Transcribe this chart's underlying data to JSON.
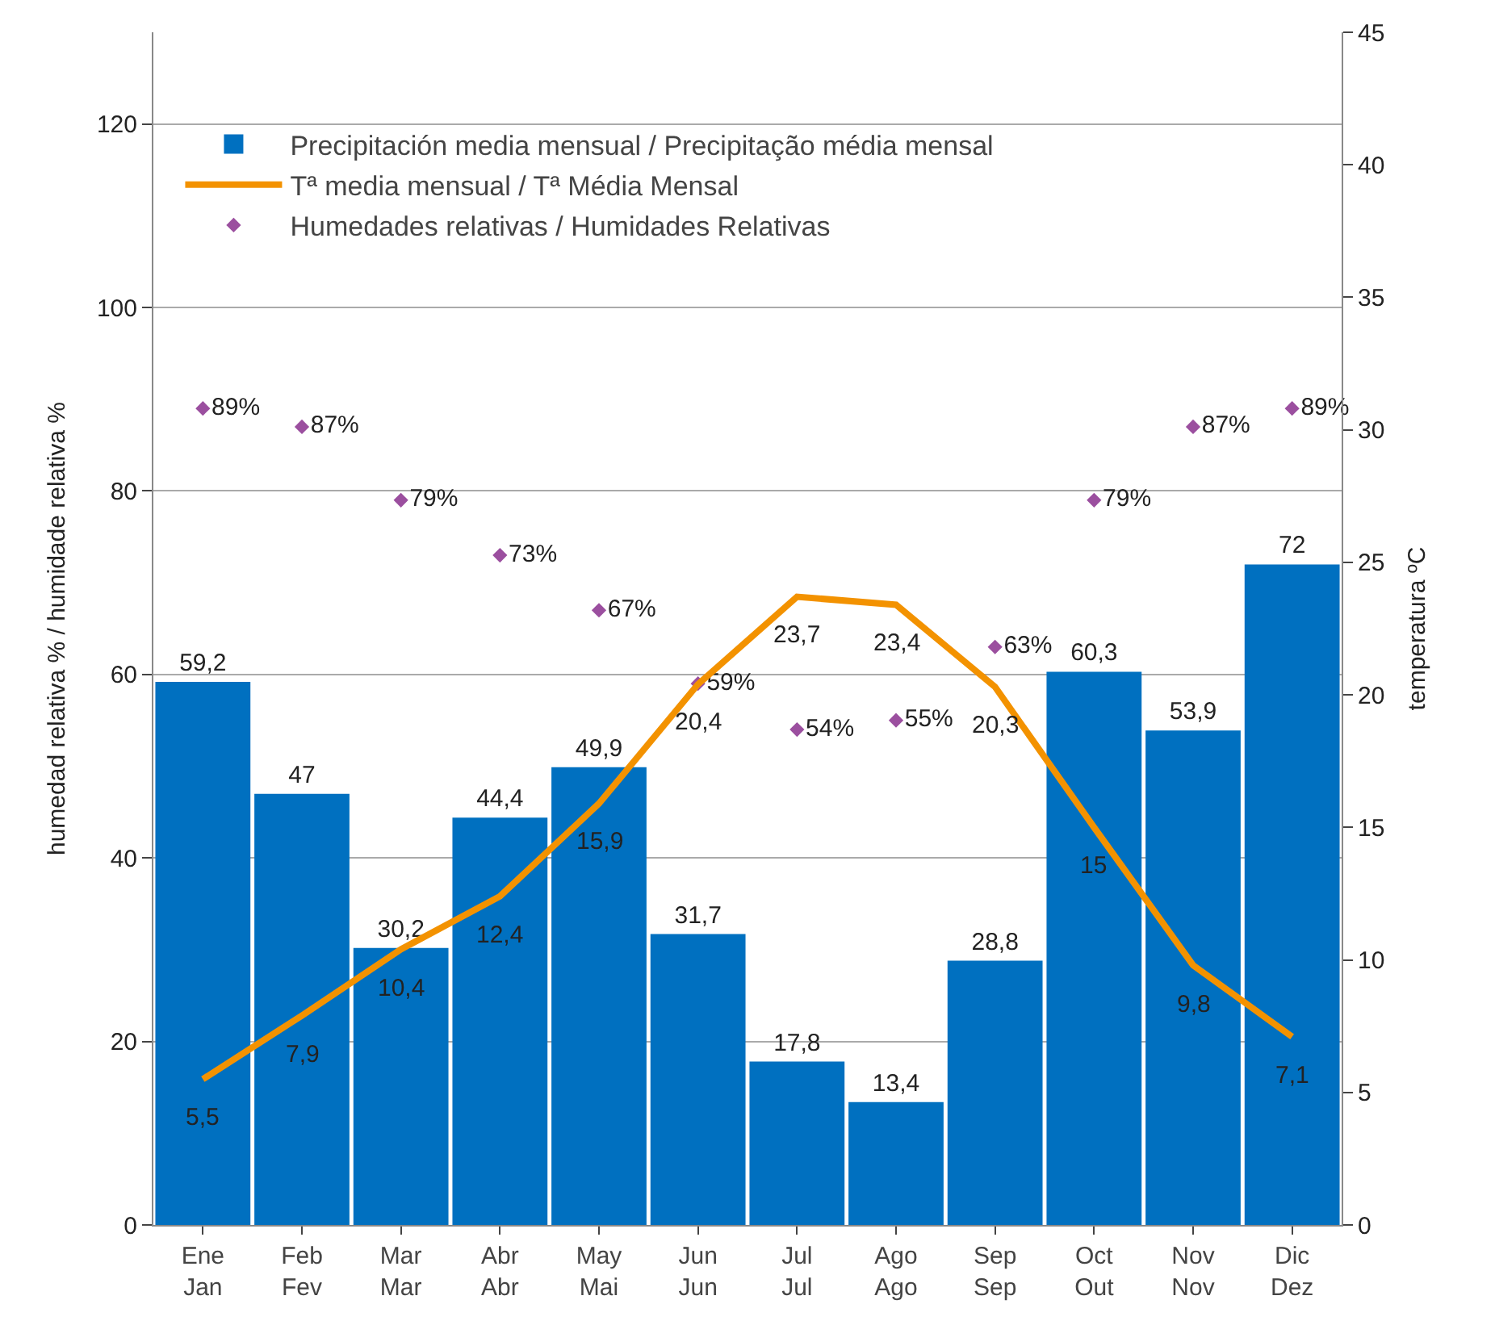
{
  "chart_data": {
    "type": "bar",
    "categories": [
      "Ene\nJan",
      "Feb\nFev",
      "Mar\nMar",
      "Abr\nAbr",
      "May\nMai",
      "Jun\nJun",
      "Jul\nJul",
      "Ago\nAgo",
      "Sep\nSep",
      "Oct\nOut",
      "Nov\nNov",
      "Dic\nDez"
    ],
    "ylabel": "humedad relativa % / humidade relativa %",
    "y2label": "temperatura ºC",
    "ylim": [
      0,
      130
    ],
    "yticks": [
      0,
      20,
      40,
      60,
      80,
      100,
      120
    ],
    "y2lim": [
      0,
      45
    ],
    "y2ticks": [
      0,
      5,
      10,
      15,
      20,
      25,
      30,
      35,
      40,
      45
    ],
    "grid": "y",
    "legend": "top left",
    "series": [
      {
        "name": "Precipitación media mensual / Precipitação média mensal",
        "color": "#0070c0",
        "values": [
          59.2,
          47,
          30.2,
          44.4,
          49.9,
          31.7,
          17.8,
          13.4,
          28.8,
          60.3,
          53.9,
          72
        ],
        "value_labels": [
          "59,2",
          "47",
          "30,2",
          "44,4",
          "49,9",
          "31,7",
          "17,8",
          "13,4",
          "28,8",
          "60,3",
          "53,9",
          "72"
        ]
      },
      {
        "name": "Tª media mensual / Tª Média Mensal",
        "type": "line",
        "axis": "y2",
        "color": "#f39200",
        "marker": "none",
        "line_style": "solid",
        "values": [
          5.5,
          7.9,
          10.4,
          12.4,
          15.9,
          20.4,
          23.7,
          23.4,
          20.3,
          15,
          9.8,
          7.1
        ],
        "value_labels": [
          "5,5",
          "7,9",
          "10,4",
          "12,4",
          "15,9",
          "20,4",
          "23,7",
          "23,4",
          "20,3",
          "15",
          "9,8",
          "7,1"
        ]
      },
      {
        "name": "Humedades relativas / Humidades Relativas",
        "type": "scatter",
        "color": "#9b4f9f",
        "marker": "diamond",
        "values": [
          89,
          87,
          79,
          73,
          67,
          59,
          54,
          55,
          63,
          79,
          87,
          89
        ],
        "value_labels": [
          "89%",
          "87%",
          "79%",
          "73%",
          "67%",
          "59%",
          "54%",
          "55%",
          "63%",
          "79%",
          "87%",
          "89%"
        ]
      }
    ]
  }
}
